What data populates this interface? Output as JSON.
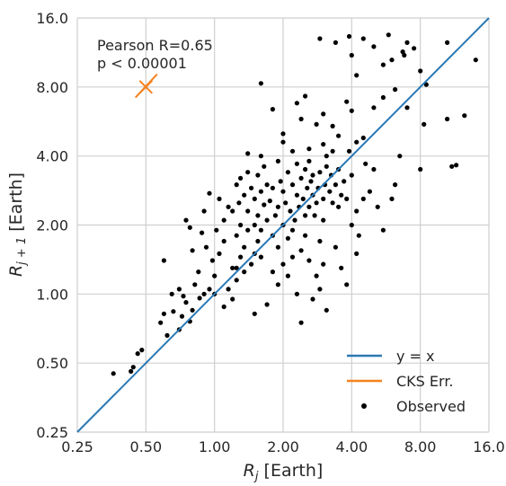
{
  "chart_data": {
    "type": "scatter",
    "title": "",
    "xlabel": "R_j [Earth]",
    "ylabel": "R_j+1 [Earth]",
    "x_scale": "log2",
    "y_scale": "log2",
    "xlim": [
      0.25,
      16.0
    ],
    "ylim": [
      0.25,
      16.0
    ],
    "grid": true,
    "x_ticks": [
      "0.25",
      "0.50",
      "1.00",
      "2.00",
      "4.00",
      "8.00",
      "16.0"
    ],
    "y_ticks": [
      "0.25",
      "0.50",
      "1.00",
      "2.00",
      "4.00",
      "8.00",
      "16.0"
    ],
    "annotations": [
      "Pearson R=0.65",
      "p < 0.00001"
    ],
    "legend_position": "lower-right",
    "legend": [
      {
        "label": "y = x",
        "kind": "line",
        "color": "#2a78b4"
      },
      {
        "label": "CKS Err.",
        "kind": "line",
        "color": "#f5821f"
      },
      {
        "label": "Observed",
        "kind": "marker",
        "color": "#000000"
      }
    ],
    "reference_line": {
      "name": "y = x",
      "x": [
        0.25,
        16.0
      ],
      "y": [
        0.25,
        16.0
      ],
      "color": "#2a78b4"
    },
    "cks_error": {
      "name": "CKS Err.",
      "center": [
        0.5,
        8.0
      ],
      "x_range": [
        0.45,
        0.56
      ],
      "y_range": [
        7.2,
        9.1
      ],
      "color": "#f5821f"
    },
    "series": [
      {
        "name": "Observed",
        "color": "#000000",
        "points": [
          [
            0.36,
            0.45
          ],
          [
            0.43,
            0.46
          ],
          [
            0.44,
            0.48
          ],
          [
            0.46,
            0.55
          ],
          [
            0.48,
            0.57
          ],
          [
            0.62,
            0.66
          ],
          [
            0.58,
            0.75
          ],
          [
            0.6,
            0.82
          ],
          [
            0.66,
            0.84
          ],
          [
            0.7,
            0.7
          ],
          [
            0.72,
            0.8
          ],
          [
            0.75,
            0.92
          ],
          [
            0.8,
            0.85
          ],
          [
            0.78,
            0.76
          ],
          [
            0.65,
            1.0
          ],
          [
            0.7,
            1.05
          ],
          [
            0.73,
            0.98
          ],
          [
            0.82,
            1.1
          ],
          [
            0.86,
            0.96
          ],
          [
            0.85,
            1.25
          ],
          [
            0.9,
            1.0
          ],
          [
            0.95,
            1.05
          ],
          [
            0.98,
            1.4
          ],
          [
            1.0,
            1.2
          ],
          [
            0.92,
            1.6
          ],
          [
            1.05,
            1.5
          ],
          [
            1.1,
            1.7
          ],
          [
            1.02,
            1.9
          ],
          [
            0.88,
            1.85
          ],
          [
            0.8,
            1.55
          ],
          [
            0.6,
            1.4
          ],
          [
            0.75,
            2.1
          ],
          [
            0.9,
            2.3
          ],
          [
            0.78,
            1.95
          ],
          [
            1.1,
            2.1
          ],
          [
            1.05,
            2.6
          ],
          [
            0.95,
            2.75
          ],
          [
            1.15,
            2.4
          ],
          [
            1.2,
            1.3
          ],
          [
            1.25,
            1.15
          ],
          [
            1.3,
            1.45
          ],
          [
            1.35,
            1.25
          ],
          [
            1.25,
            1.8
          ],
          [
            1.3,
            2.0
          ],
          [
            1.35,
            1.6
          ],
          [
            1.4,
            1.9
          ],
          [
            1.45,
            1.35
          ],
          [
            1.2,
            2.3
          ],
          [
            1.28,
            2.5
          ],
          [
            1.35,
            2.7
          ],
          [
            1.4,
            2.3
          ],
          [
            1.45,
            2.9
          ],
          [
            1.3,
            3.2
          ],
          [
            1.4,
            3.4
          ],
          [
            1.25,
            3.0
          ],
          [
            1.5,
            1.5
          ],
          [
            1.55,
            1.7
          ],
          [
            1.6,
            1.45
          ],
          [
            1.5,
            2.0
          ],
          [
            1.55,
            2.2
          ],
          [
            1.6,
            1.9
          ],
          [
            1.65,
            2.45
          ],
          [
            1.7,
            2.1
          ],
          [
            1.5,
            2.6
          ],
          [
            1.6,
            2.8
          ],
          [
            1.7,
            3.0
          ],
          [
            1.55,
            3.3
          ],
          [
            1.65,
            3.6
          ],
          [
            1.75,
            2.55
          ],
          [
            1.8,
            1.8
          ],
          [
            1.85,
            2.2
          ],
          [
            1.9,
            1.6
          ],
          [
            1.8,
            2.9
          ],
          [
            1.9,
            2.4
          ],
          [
            1.95,
            3.1
          ],
          [
            2.0,
            2.0
          ],
          [
            2.05,
            2.5
          ],
          [
            2.1,
            1.75
          ],
          [
            2.0,
            2.8
          ],
          [
            2.15,
            2.3
          ],
          [
            2.2,
            3.0
          ],
          [
            2.1,
            3.4
          ],
          [
            2.25,
            2.1
          ],
          [
            2.3,
            2.7
          ],
          [
            2.35,
            2.4
          ],
          [
            2.2,
            1.9
          ],
          [
            2.4,
            3.2
          ],
          [
            2.45,
            2.6
          ],
          [
            2.5,
            2.2
          ],
          [
            2.55,
            2.9
          ],
          [
            2.6,
            2.4
          ],
          [
            2.65,
            3.1
          ],
          [
            2.7,
            2.7
          ],
          [
            2.75,
            2.2
          ],
          [
            2.8,
            2.5
          ],
          [
            2.5,
            3.5
          ],
          [
            2.6,
            3.8
          ],
          [
            2.7,
            3.3
          ],
          [
            2.85,
            2.9
          ],
          [
            2.9,
            3.4
          ],
          [
            3.0,
            2.6
          ],
          [
            3.05,
            3.0
          ],
          [
            3.1,
            3.6
          ],
          [
            3.2,
            2.8
          ],
          [
            3.25,
            3.3
          ],
          [
            3.0,
            2.1
          ],
          [
            3.3,
            2.5
          ],
          [
            3.4,
            3.0
          ],
          [
            3.5,
            2.4
          ],
          [
            3.6,
            2.7
          ],
          [
            3.1,
            4.0
          ],
          [
            3.3,
            4.2
          ],
          [
            3.5,
            3.5
          ],
          [
            3.7,
            3.1
          ],
          [
            3.8,
            2.6
          ],
          [
            2.4,
            1.55
          ],
          [
            2.6,
            1.4
          ],
          [
            2.8,
            1.2
          ],
          [
            3.0,
            1.35
          ],
          [
            2.2,
            1.45
          ],
          [
            3.4,
            1.6
          ],
          [
            3.6,
            1.3
          ],
          [
            2.9,
            1.7
          ],
          [
            2.5,
            1.8
          ],
          [
            1.8,
            1.25
          ],
          [
            1.9,
            1.1
          ],
          [
            2.0,
            1.35
          ],
          [
            2.1,
            1.2
          ],
          [
            2.3,
            1.0
          ],
          [
            2.7,
            0.95
          ],
          [
            2.9,
            1.05
          ],
          [
            3.1,
            0.85
          ],
          [
            2.4,
            0.75
          ],
          [
            1.5,
            0.82
          ],
          [
            1.7,
            0.9
          ],
          [
            3.8,
            1.1
          ],
          [
            4.0,
            2.0
          ],
          [
            4.3,
            1.8
          ],
          [
            4.5,
            2.6
          ],
          [
            4.0,
            3.3
          ],
          [
            3.9,
            4.2
          ],
          [
            4.2,
            4.6
          ],
          [
            4.6,
            3.7
          ],
          [
            5.0,
            3.5
          ],
          [
            4.5,
            4.8
          ],
          [
            3.5,
            4.9
          ],
          [
            3.0,
            4.5
          ],
          [
            2.6,
            4.3
          ],
          [
            2.2,
            4.2
          ],
          [
            2.0,
            4.6
          ],
          [
            1.6,
            4.0
          ],
          [
            1.4,
            4.1
          ],
          [
            1.9,
            3.8
          ],
          [
            2.3,
            3.7
          ],
          [
            2.0,
            5.0
          ],
          [
            2.8,
            5.5
          ],
          [
            2.4,
            5.8
          ],
          [
            3.3,
            5.4
          ],
          [
            3.0,
            6.1
          ],
          [
            2.3,
            6.8
          ],
          [
            2.5,
            7.3
          ],
          [
            1.8,
            6.4
          ],
          [
            3.8,
            6.9
          ],
          [
            4.0,
            6.3
          ],
          [
            5.0,
            6.5
          ],
          [
            5.5,
            7.2
          ],
          [
            6.2,
            7.8
          ],
          [
            7.0,
            6.5
          ],
          [
            8.5,
            8.2
          ],
          [
            8.3,
            5.5
          ],
          [
            10.5,
            5.8
          ],
          [
            11.0,
            3.6
          ],
          [
            11.5,
            3.65
          ],
          [
            6.2,
            3.0
          ],
          [
            6.0,
            2.6
          ],
          [
            5.5,
            1.9
          ],
          [
            8.0,
            3.5
          ],
          [
            6.5,
            4.0
          ],
          [
            4.2,
            2.3
          ],
          [
            4.8,
            2.8
          ],
          [
            5.2,
            2.4
          ],
          [
            4.2,
            1.5
          ],
          [
            1.6,
            8.3
          ],
          [
            2.9,
            13.0
          ],
          [
            3.9,
            13.3
          ],
          [
            3.4,
            12.5
          ],
          [
            4.2,
            9.0
          ],
          [
            4.5,
            13.0
          ],
          [
            4.0,
            11.0
          ],
          [
            5.0,
            12.0
          ],
          [
            5.5,
            10.0
          ],
          [
            6.0,
            10.5
          ],
          [
            7.0,
            12.5
          ],
          [
            5.8,
            13.5
          ],
          [
            6.8,
            11.0
          ],
          [
            7.5,
            11.8
          ],
          [
            8.0,
            9.4
          ],
          [
            10.5,
            12.5
          ],
          [
            14.0,
            10.5
          ],
          [
            12.5,
            6.0
          ],
          [
            6.7,
            11.4
          ],
          [
            1.0,
            1.0
          ],
          [
            1.1,
            0.88
          ],
          [
            1.15,
            1.05
          ],
          [
            1.2,
            0.95
          ],
          [
            1.25,
            1.3
          ]
        ]
      }
    ]
  }
}
